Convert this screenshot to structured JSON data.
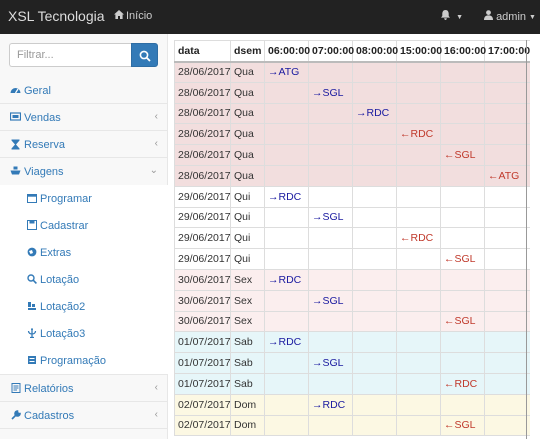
{
  "navbar": {
    "brand": "XSL Tecnologia",
    "home_label": "Início",
    "user_label": "admin"
  },
  "sidebar": {
    "search_placeholder": "Filtrar...",
    "menu": [
      {
        "label": "Geral",
        "icon": "dashboard-icon",
        "has_chevron": false
      },
      {
        "label": "Vendas",
        "icon": "ticket-icon",
        "has_chevron": true,
        "chevron": "left"
      },
      {
        "label": "Reserva",
        "icon": "hourglass-icon",
        "has_chevron": true,
        "chevron": "left"
      },
      {
        "label": "Viagens",
        "icon": "ship-icon",
        "has_chevron": true,
        "chevron": "down"
      }
    ],
    "submenu": [
      {
        "label": "Programar",
        "icon": "calendar-icon"
      },
      {
        "label": "Cadastrar",
        "icon": "save-icon"
      },
      {
        "label": "Extras",
        "icon": "globe-icon"
      },
      {
        "label": "Lotação",
        "icon": "search-icon"
      },
      {
        "label": "Lotação2",
        "icon": "search-icon"
      },
      {
        "label": "Lotação3",
        "icon": "toilet-icon"
      },
      {
        "label": "Programação",
        "icon": "anchor-icon"
      }
    ],
    "menu_bottom": [
      {
        "label": "Relatórios",
        "icon": "report-icon",
        "has_chevron": true,
        "chevron": "left"
      },
      {
        "label": "Cadastros",
        "icon": "wrench-icon",
        "has_chevron": true,
        "chevron": "left"
      }
    ]
  },
  "table": {
    "columns": [
      "data",
      "dsem",
      "06:00:00",
      "07:00:00",
      "08:00:00",
      "15:00:00",
      "16:00:00",
      "17:00:00"
    ],
    "rows": [
      {
        "group": "d1",
        "date": "28/06/2017",
        "dsem": "Qua",
        "col": 0,
        "text": "→ATG",
        "dir": "out"
      },
      {
        "group": "d1",
        "date": "28/06/2017",
        "dsem": "Qua",
        "col": 1,
        "text": "→SGL",
        "dir": "out"
      },
      {
        "group": "d1",
        "date": "28/06/2017",
        "dsem": "Qua",
        "col": 2,
        "text": "→RDC",
        "dir": "out"
      },
      {
        "group": "d1",
        "date": "28/06/2017",
        "dsem": "Qua",
        "col": 3,
        "text": "←RDC",
        "dir": "in"
      },
      {
        "group": "d1",
        "date": "28/06/2017",
        "dsem": "Qua",
        "col": 4,
        "text": "←SGL",
        "dir": "in"
      },
      {
        "group": "d1",
        "date": "28/06/2017",
        "dsem": "Qua",
        "col": 5,
        "text": "←ATG",
        "dir": "in"
      },
      {
        "group": "d2",
        "date": "29/06/2017",
        "dsem": "Qui",
        "col": 0,
        "text": "→RDC",
        "dir": "out"
      },
      {
        "group": "d2",
        "date": "29/06/2017",
        "dsem": "Qui",
        "col": 1,
        "text": "→SGL",
        "dir": "out"
      },
      {
        "group": "d2",
        "date": "29/06/2017",
        "dsem": "Qui",
        "col": 3,
        "text": "←RDC",
        "dir": "in"
      },
      {
        "group": "d2",
        "date": "29/06/2017",
        "dsem": "Qui",
        "col": 4,
        "text": "←SGL",
        "dir": "in"
      },
      {
        "group": "d3",
        "date": "30/06/2017",
        "dsem": "Sex",
        "col": 0,
        "text": "→RDC",
        "dir": "out"
      },
      {
        "group": "d3",
        "date": "30/06/2017",
        "dsem": "Sex",
        "col": 1,
        "text": "→SGL",
        "dir": "out"
      },
      {
        "group": "d3",
        "date": "30/06/2017",
        "dsem": "Sex",
        "col": 4,
        "text": "←SGL",
        "dir": "in"
      },
      {
        "group": "d4",
        "date": "01/07/2017",
        "dsem": "Sab",
        "col": 0,
        "text": "→RDC",
        "dir": "out"
      },
      {
        "group": "d4",
        "date": "01/07/2017",
        "dsem": "Sab",
        "col": 1,
        "text": "→SGL",
        "dir": "out"
      },
      {
        "group": "d4",
        "date": "01/07/2017",
        "dsem": "Sab",
        "col": 4,
        "text": "←RDC",
        "dir": "in"
      },
      {
        "group": "d5",
        "date": "02/07/2017",
        "dsem": "Dom",
        "col": 1,
        "text": "→RDC",
        "dir": "out"
      },
      {
        "group": "d5",
        "date": "02/07/2017",
        "dsem": "Dom",
        "col": 4,
        "text": "←SGL",
        "dir": "in"
      }
    ]
  },
  "colors": {
    "navbar_bg": "#222222",
    "link": "#337ab7",
    "outbound": "#1a1aa0",
    "inbound": "#c0392b"
  }
}
